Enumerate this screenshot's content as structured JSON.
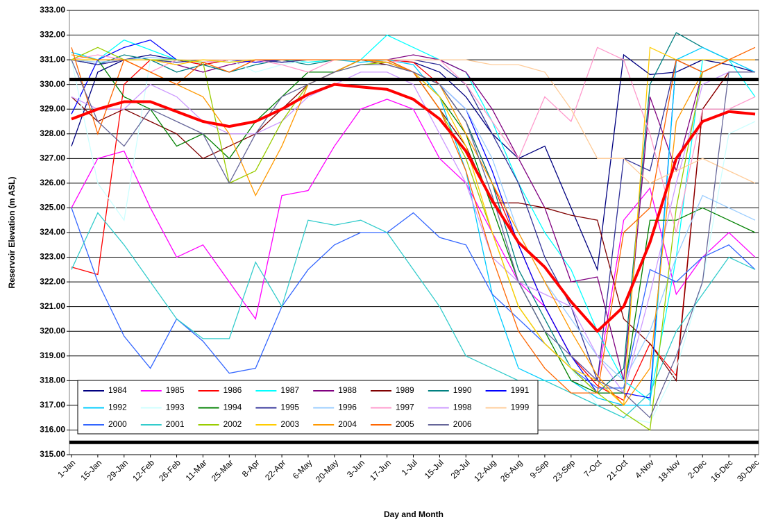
{
  "chart_data": {
    "type": "line",
    "x_label": "Day and Month",
    "y_label": "Reservoir Elevation (m ASL)",
    "categories": [
      "1-Jan",
      "15-Jan",
      "29-Jan",
      "12-Feb",
      "26-Feb",
      "11-Mar",
      "25-Mar",
      "8-Apr",
      "22-Apr",
      "6-May",
      "20-May",
      "3-Jun",
      "17-Jun",
      "1-Jul",
      "15-Jul",
      "29-Jul",
      "12-Aug",
      "26-Aug",
      "9-Sep",
      "23-Sep",
      "7-Oct",
      "21-Oct",
      "4-Nov",
      "18-Nov",
      "2-Dec",
      "16-Dec",
      "30-Dec"
    ],
    "ylim": [
      315,
      333
    ],
    "yticks": [
      {
        "value": 315,
        "label": "315.00"
      },
      {
        "value": 316,
        "label": "316.00"
      },
      {
        "value": 317,
        "label": "317.00"
      },
      {
        "value": 318,
        "label": "318.00"
      },
      {
        "value": 319,
        "label": "319.00"
      },
      {
        "value": 320,
        "label": "320.00"
      },
      {
        "value": 321,
        "label": "321.00"
      },
      {
        "value": 322,
        "label": "322.00"
      },
      {
        "value": 323,
        "label": "323.00"
      },
      {
        "value": 324,
        "label": "324.00"
      },
      {
        "value": 325,
        "label": "325.00"
      },
      {
        "value": 326,
        "label": "326.00"
      },
      {
        "value": 327,
        "label": "327.00"
      },
      {
        "value": 328,
        "label": "328.00"
      },
      {
        "value": 329,
        "label": "329.00"
      },
      {
        "value": 330,
        "label": "330.00"
      },
      {
        "value": 331,
        "label": "331.00"
      },
      {
        "value": 332,
        "label": "332.00"
      },
      {
        "value": 333,
        "label": "333.00"
      }
    ],
    "grid": true,
    "legend": "bottom-left",
    "series": [
      {
        "name": "1984",
        "color": "#000080",
        "values": [
          327.5,
          330.5,
          331.0,
          331.2,
          331.0,
          330.8,
          331.0,
          331.0,
          330.9,
          331.0,
          331.0,
          331.0,
          331.0,
          330.9,
          330.5,
          329.5,
          328.0,
          327.0,
          327.5,
          325.0,
          322.5,
          331.2,
          330.4,
          330.5,
          331.0,
          330.8,
          330.5
        ]
      },
      {
        "name": "1985",
        "color": "#FF00FF",
        "values": [
          325.0,
          327.0,
          327.3,
          325.0,
          323.0,
          323.5,
          322.0,
          320.5,
          325.5,
          325.7,
          327.5,
          329.0,
          329.4,
          329.0,
          327.0,
          326.0,
          324.0,
          322.0,
          321.0,
          319.0,
          318.0,
          324.5,
          325.8,
          321.5,
          323.0,
          324.0,
          323.0
        ]
      },
      {
        "name": "1986",
        "color": "#FF0000",
        "values": [
          322.6,
          322.3,
          330.0,
          331.0,
          331.0,
          330.8,
          331.0,
          330.9,
          331.0,
          331.0,
          331.0,
          331.0,
          331.0,
          330.9,
          330.0,
          328.5,
          326.0,
          323.5,
          321.0,
          319.0,
          317.8,
          317.2,
          319.5,
          318.2,
          329.0,
          330.5,
          330.5
        ]
      },
      {
        "name": "1987",
        "color": "#00FFFF",
        "values": [
          331.3,
          331.0,
          331.8,
          331.4,
          331.0,
          331.0,
          330.9,
          331.0,
          331.0,
          330.9,
          331.0,
          331.0,
          332.0,
          331.5,
          331.0,
          330.5,
          328.5,
          326.0,
          324.0,
          322.5,
          320.0,
          318.0,
          317.2,
          323.0,
          331.0,
          331.0,
          329.5
        ]
      },
      {
        "name": "1988",
        "color": "#800080",
        "values": [
          331.0,
          330.8,
          331.0,
          331.0,
          330.8,
          330.5,
          330.8,
          331.0,
          331.0,
          331.0,
          331.0,
          331.0,
          331.0,
          331.2,
          331.0,
          330.5,
          329.0,
          327.0,
          325.0,
          322.0,
          322.2,
          318.0,
          329.5,
          326.5,
          330.5,
          331.0,
          331.0
        ]
      },
      {
        "name": "1989",
        "color": "#800000",
        "values": [
          329.5,
          328.5,
          329.0,
          328.5,
          328.0,
          327.0,
          327.5,
          328.0,
          329.0,
          330.0,
          330.5,
          331.0,
          330.8,
          330.5,
          329.0,
          327.5,
          325.2,
          325.2,
          325.0,
          324.7,
          324.5,
          320.5,
          319.5,
          318.0,
          329.0,
          330.5,
          330.5
        ]
      },
      {
        "name": "1990",
        "color": "#008080",
        "values": [
          331.0,
          330.8,
          331.2,
          331.0,
          330.5,
          330.8,
          330.5,
          330.8,
          331.0,
          330.8,
          331.0,
          331.0,
          331.0,
          330.5,
          330.0,
          328.5,
          326.0,
          322.5,
          320.5,
          318.5,
          317.5,
          318.5,
          330.0,
          332.1,
          331.5,
          331.0,
          331.0
        ]
      },
      {
        "name": "1991",
        "color": "#0000FF",
        "values": [
          328.8,
          331.0,
          331.5,
          331.8,
          331.0,
          330.9,
          331.0,
          330.9,
          331.0,
          331.0,
          331.0,
          331.0,
          331.0,
          330.5,
          330.0,
          329.0,
          326.5,
          323.5,
          321.0,
          319.0,
          317.5,
          317.5,
          317.3,
          331.0,
          331.0,
          331.0,
          331.0
        ]
      },
      {
        "name": "1992",
        "color": "#00CCFF",
        "values": [
          331.3,
          331.0,
          331.0,
          331.0,
          331.0,
          330.9,
          331.0,
          331.0,
          331.0,
          331.0,
          331.0,
          330.9,
          331.0,
          330.8,
          329.5,
          326.5,
          321.5,
          318.5,
          318.0,
          318.0,
          317.3,
          317.0,
          317.0,
          331.0,
          331.5,
          331.0,
          330.5
        ]
      },
      {
        "name": "1993",
        "color": "#CCFFFF",
        "values": [
          331.0,
          326.0,
          324.5,
          331.0,
          331.0,
          330.9,
          331.0,
          330.5,
          330.8,
          331.0,
          331.0,
          331.0,
          330.9,
          330.5,
          330.0,
          328.0,
          325.0,
          322.0,
          320.0,
          318.5,
          317.0,
          316.5,
          316.3,
          318.5,
          322.0,
          328.0,
          328.5
        ]
      },
      {
        "name": "1994",
        "color": "#008000",
        "values": [
          331.0,
          331.0,
          329.5,
          329.0,
          327.5,
          328.0,
          327.0,
          328.5,
          329.5,
          330.5,
          330.5,
          331.0,
          330.9,
          330.5,
          329.5,
          328.0,
          325.0,
          322.0,
          320.0,
          318.0,
          317.5,
          317.5,
          324.5,
          324.5,
          325.0,
          324.5,
          324.0
        ]
      },
      {
        "name": "1995",
        "color": "#333399",
        "values": [
          331.0,
          330.8,
          331.0,
          331.0,
          330.9,
          331.0,
          331.0,
          331.0,
          330.9,
          331.0,
          331.0,
          331.0,
          331.0,
          331.0,
          330.8,
          330.0,
          328.0,
          326.0,
          323.0,
          321.0,
          318.0,
          327.0,
          326.5,
          331.0,
          330.5,
          331.0,
          331.0
        ]
      },
      {
        "name": "1996",
        "color": "#99CCFF",
        "values": [
          331.0,
          330.9,
          331.0,
          331.1,
          331.0,
          330.9,
          331.0,
          331.0,
          331.0,
          331.0,
          331.0,
          331.0,
          330.9,
          330.5,
          330.0,
          329.0,
          327.0,
          324.0,
          322.0,
          320.5,
          319.0,
          318.0,
          320.0,
          323.0,
          325.5,
          325.0,
          324.5
        ]
      },
      {
        "name": "1997",
        "color": "#FF99CC",
        "values": [
          331.0,
          331.2,
          331.0,
          330.5,
          331.0,
          330.9,
          331.0,
          331.0,
          330.8,
          330.5,
          331.0,
          331.0,
          330.9,
          331.0,
          331.0,
          330.0,
          328.5,
          327.0,
          329.5,
          328.5,
          331.5,
          331.0,
          328.0,
          324.0,
          329.0,
          329.0,
          329.5
        ]
      },
      {
        "name": "1998",
        "color": "#CC99FF",
        "values": [
          329.5,
          329.0,
          329.0,
          330.0,
          329.5,
          328.5,
          328.0,
          328.0,
          328.5,
          329.5,
          330.0,
          330.5,
          330.5,
          330.0,
          328.0,
          326.0,
          323.0,
          322.0,
          321.5,
          321.0,
          319.0,
          317.5,
          321.5,
          326.0,
          330.0,
          330.5,
          330.5
        ]
      },
      {
        "name": "1999",
        "color": "#FFCC99",
        "values": [
          331.0,
          331.0,
          331.0,
          331.0,
          331.0,
          331.0,
          331.0,
          331.0,
          331.0,
          331.0,
          331.0,
          331.0,
          331.0,
          331.0,
          331.0,
          331.0,
          330.8,
          330.8,
          330.5,
          329.0,
          327.0,
          327.0,
          326.0,
          326.5,
          327.0,
          326.5,
          326.0
        ]
      },
      {
        "name": "2000",
        "color": "#3366FF",
        "values": [
          325.0,
          322.0,
          319.8,
          318.5,
          320.5,
          319.6,
          318.3,
          318.5,
          321.0,
          322.5,
          323.5,
          324.0,
          324.0,
          324.8,
          323.8,
          323.5,
          321.5,
          320.5,
          319.5,
          318.5,
          317.7,
          317.7,
          322.5,
          322.0,
          323.0,
          323.5,
          322.5
        ]
      },
      {
        "name": "2001",
        "color": "#33CCCC",
        "values": [
          322.5,
          324.8,
          323.5,
          322.0,
          320.5,
          319.7,
          319.7,
          322.8,
          321.0,
          324.5,
          324.3,
          324.5,
          324.0,
          322.5,
          321.0,
          319.0,
          318.5,
          318.0,
          318.0,
          317.5,
          317.0,
          316.5,
          317.5,
          320.0,
          321.5,
          323.0,
          322.5
        ]
      },
      {
        "name": "2002",
        "color": "#99CC00",
        "values": [
          331.0,
          331.5,
          331.0,
          331.0,
          331.0,
          330.9,
          326.0,
          326.5,
          328.5,
          330.0,
          330.5,
          330.8,
          330.9,
          330.5,
          329.0,
          327.0,
          324.0,
          321.0,
          319.5,
          318.5,
          317.5,
          316.7,
          316.0,
          325.0,
          330.5,
          331.0,
          331.0
        ]
      },
      {
        "name": "2003",
        "color": "#FFCC00",
        "values": [
          331.0,
          331.0,
          331.0,
          331.0,
          330.8,
          331.0,
          330.9,
          331.0,
          331.0,
          331.0,
          331.0,
          331.0,
          331.0,
          330.5,
          329.5,
          327.5,
          324.0,
          321.0,
          319.5,
          318.5,
          318.0,
          317.0,
          331.5,
          331.0,
          331.0,
          331.0,
          331.0
        ]
      },
      {
        "name": "2004",
        "color": "#FF9900",
        "values": [
          331.2,
          331.0,
          331.0,
          330.5,
          330.0,
          329.5,
          328.0,
          325.5,
          327.5,
          330.0,
          330.5,
          331.0,
          330.9,
          330.5,
          330.0,
          328.0,
          326.0,
          324.0,
          322.0,
          320.0,
          318.2,
          317.0,
          318.5,
          328.5,
          330.5,
          331.0,
          331.0
        ]
      },
      {
        "name": "2005",
        "color": "#FF6600",
        "values": [
          331.5,
          328.0,
          331.0,
          330.5,
          330.0,
          330.9,
          330.5,
          331.0,
          331.0,
          331.0,
          331.0,
          331.0,
          331.0,
          330.5,
          329.0,
          326.5,
          323.0,
          320.0,
          318.5,
          317.5,
          317.5,
          324.0,
          325.0,
          331.0,
          330.5,
          331.0,
          331.5
        ]
      },
      {
        "name": "2006",
        "color": "#666699",
        "values": [
          331.0,
          328.5,
          327.5,
          329.0,
          328.5,
          328.0,
          326.0,
          328.0,
          329.5,
          330.0,
          330.5,
          330.8,
          330.8,
          330.5,
          330.0,
          328.5,
          325.5,
          322.0,
          320.0,
          319.0,
          318.0,
          317.5,
          316.5,
          319.0,
          322.0,
          330.5,
          330.5
        ]
      }
    ],
    "average": {
      "color": "#FF0000",
      "values": [
        328.6,
        329.0,
        329.3,
        329.3,
        328.9,
        328.5,
        328.3,
        328.5,
        329.0,
        329.6,
        330.0,
        329.9,
        329.8,
        329.4,
        328.6,
        327.3,
        325.3,
        323.6,
        322.6,
        321.2,
        320.0,
        321.0,
        323.6,
        327.0,
        328.5,
        328.9,
        328.8
      ]
    },
    "reference_lines": {
      "color": "#000000",
      "values": [
        330.2,
        315.5
      ]
    }
  }
}
